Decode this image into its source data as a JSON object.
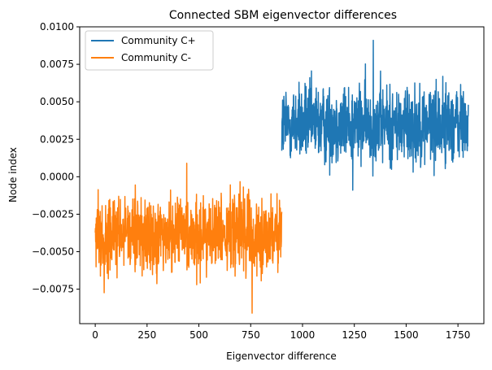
{
  "chart_data": {
    "type": "line",
    "title": "Connected SBM eigenvector differences",
    "xlabel": "Eigenvector difference",
    "ylabel": "Node index",
    "xlim": [
      -75,
      1875
    ],
    "ylim": [
      -0.0098,
      0.01
    ],
    "xticks": [
      0,
      250,
      500,
      750,
      1000,
      1250,
      1500,
      1750
    ],
    "xtick_labels": [
      "0",
      "250",
      "500",
      "750",
      "1000",
      "1250",
      "1500",
      "1750"
    ],
    "yticks": [
      -0.0075,
      -0.005,
      -0.0025,
      0.0,
      0.0025,
      0.005,
      0.0075,
      0.01
    ],
    "ytick_labels": [
      "−0.0075",
      "−0.0050",
      "−0.0025",
      "0.0000",
      "0.0025",
      "0.0050",
      "0.0075",
      "0.0100"
    ],
    "grid": false,
    "legend_position": "top-left",
    "series": [
      {
        "name": "Community C+",
        "color": "#1f77b4",
        "x_range": [
          900,
          1800
        ],
        "mean": 0.0035,
        "spread": 0.0013,
        "min": -0.0009,
        "max": 0.0091,
        "n_points": 900
      },
      {
        "name": "Community C-",
        "color": "#ff7f0e",
        "x_range": [
          0,
          900
        ],
        "mean": -0.0039,
        "spread": 0.0013,
        "min": -0.0091,
        "max": 0.0009,
        "n_points": 900
      }
    ]
  }
}
